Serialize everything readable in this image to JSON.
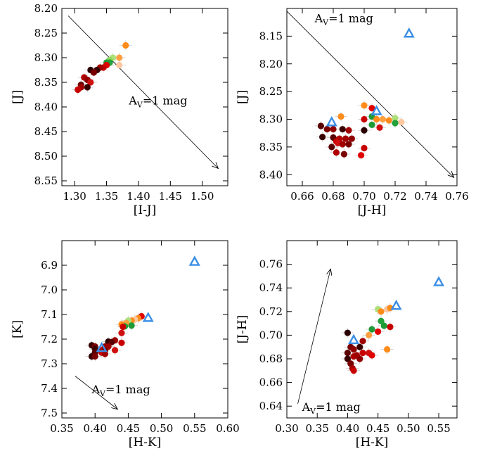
{
  "chart_data": [
    {
      "type": "scatter",
      "xlabel": "[I-J]",
      "ylabel": "[J]",
      "xlim": [
        1.28,
        1.54
      ],
      "ylim": [
        8.56,
        8.2
      ],
      "xticks": [
        "1.30",
        "1.35",
        "1.40",
        "1.45",
        "1.50"
      ],
      "yticks": [
        "8.20",
        "8.25",
        "8.30",
        "8.35",
        "8.40",
        "8.45",
        "8.50",
        "8.55"
      ],
      "annotation": {
        "main": "A",
        "sub": "V",
        "rest": "=1 mag",
        "x": 1.385,
        "y": 8.395
      },
      "reddening_vector": {
        "x0": 1.29,
        "y0": 8.215,
        "x1": 1.525,
        "y1": 8.525
      },
      "points": [
        {
          "x": 1.38,
          "y": 8.275,
          "color": "#ff8c1a"
        },
        {
          "x": 1.37,
          "y": 8.3,
          "color": "#ffa040"
        },
        {
          "x": 1.37,
          "y": 8.315,
          "color": "#ffc8a0"
        },
        {
          "x": 1.36,
          "y": 8.3,
          "color": "#aee07a"
        },
        {
          "x": 1.355,
          "y": 8.305,
          "color": "#8cd85a"
        },
        {
          "x": 1.355,
          "y": 8.31,
          "color": "#22a23a"
        },
        {
          "x": 1.35,
          "y": 8.31,
          "color": "#1e9a36"
        },
        {
          "x": 1.35,
          "y": 8.315,
          "color": "#e00000"
        },
        {
          "x": 1.345,
          "y": 8.32,
          "color": "#c80000"
        },
        {
          "x": 1.34,
          "y": 8.32,
          "color": "#a00000"
        },
        {
          "x": 1.335,
          "y": 8.325,
          "color": "#3a0000"
        },
        {
          "x": 1.325,
          "y": 8.325,
          "color": "#2a0000"
        },
        {
          "x": 1.33,
          "y": 8.33,
          "color": "#7a0000"
        },
        {
          "x": 1.315,
          "y": 8.34,
          "color": "#b00000"
        },
        {
          "x": 1.32,
          "y": 8.345,
          "color": "#900000"
        },
        {
          "x": 1.325,
          "y": 8.35,
          "color": "#d01010"
        },
        {
          "x": 1.31,
          "y": 8.355,
          "color": "#6a0000"
        },
        {
          "x": 1.32,
          "y": 8.36,
          "color": "#380000"
        },
        {
          "x": 1.31,
          "y": 8.36,
          "color": "#a00000"
        },
        {
          "x": 1.305,
          "y": 8.365,
          "color": "#c80000"
        }
      ],
      "triangles": []
    },
    {
      "type": "scatter",
      "xlabel": "[J-H]",
      "ylabel": "[J]",
      "xlim": [
        0.65,
        0.76
      ],
      "ylim": [
        8.42,
        8.1
      ],
      "xticks": [
        "0.66",
        "0.68",
        "0.70",
        "0.72",
        "0.74",
        "0.76"
      ],
      "yticks": [
        "8.15",
        "8.20",
        "8.25",
        "8.30",
        "8.35",
        "8.40"
      ],
      "annotation": {
        "main": "A",
        "sub": "V",
        "rest": "=1 mag",
        "x": 0.668,
        "y": 8.125
      },
      "reddening_vector": {
        "x0": 0.65,
        "y0": 8.105,
        "x1": 0.758,
        "y1": 8.405
      },
      "points": [
        {
          "x": 0.7,
          "y": 8.275,
          "color": "#ff8c1a"
        },
        {
          "x": 0.705,
          "y": 8.28,
          "color": "#e00000"
        },
        {
          "x": 0.685,
          "y": 8.295,
          "color": "#ff8c1a"
        },
        {
          "x": 0.7,
          "y": 8.3,
          "color": "#c80000"
        },
        {
          "x": 0.705,
          "y": 8.295,
          "color": "#1e9a36"
        },
        {
          "x": 0.708,
          "y": 8.3,
          "color": "#ff8c1a"
        },
        {
          "x": 0.712,
          "y": 8.3,
          "color": "#ffa040"
        },
        {
          "x": 0.716,
          "y": 8.302,
          "color": "#ff8c1a"
        },
        {
          "x": 0.72,
          "y": 8.298,
          "color": "#aee07a"
        },
        {
          "x": 0.724,
          "y": 8.305,
          "color": "#ffc8a0"
        },
        {
          "x": 0.72,
          "y": 8.307,
          "color": "#22a23a"
        },
        {
          "x": 0.705,
          "y": 8.31,
          "color": "#1e9a36"
        },
        {
          "x": 0.71,
          "y": 8.315,
          "color": "#d01010"
        },
        {
          "x": 0.7,
          "y": 8.32,
          "color": "#2a0000"
        },
        {
          "x": 0.672,
          "y": 8.312,
          "color": "#5a0000"
        },
        {
          "x": 0.676,
          "y": 8.318,
          "color": "#7a0000"
        },
        {
          "x": 0.68,
          "y": 8.318,
          "color": "#900000"
        },
        {
          "x": 0.686,
          "y": 8.318,
          "color": "#3a0000"
        },
        {
          "x": 0.69,
          "y": 8.32,
          "color": "#a00000"
        },
        {
          "x": 0.673,
          "y": 8.332,
          "color": "#380000"
        },
        {
          "x": 0.68,
          "y": 8.333,
          "color": "#5a0000"
        },
        {
          "x": 0.684,
          "y": 8.335,
          "color": "#b00000"
        },
        {
          "x": 0.688,
          "y": 8.335,
          "color": "#a00000"
        },
        {
          "x": 0.692,
          "y": 8.335,
          "color": "#900000"
        },
        {
          "x": 0.682,
          "y": 8.34,
          "color": "#c80000"
        },
        {
          "x": 0.683,
          "y": 8.343,
          "color": "#d01010"
        },
        {
          "x": 0.686,
          "y": 8.345,
          "color": "#a00000"
        },
        {
          "x": 0.69,
          "y": 8.345,
          "color": "#7a0000"
        },
        {
          "x": 0.679,
          "y": 8.35,
          "color": "#5a0000"
        },
        {
          "x": 0.7,
          "y": 8.352,
          "color": "#c80000"
        },
        {
          "x": 0.682,
          "y": 8.36,
          "color": "#b00000"
        },
        {
          "x": 0.687,
          "y": 8.363,
          "color": "#7a0000"
        },
        {
          "x": 0.698,
          "y": 8.365,
          "color": "#e00000"
        }
      ],
      "triangles": [
        {
          "x": 0.729,
          "y": 8.145
        },
        {
          "x": 0.708,
          "y": 8.285
        },
        {
          "x": 0.679,
          "y": 8.305
        }
      ]
    },
    {
      "type": "scatter",
      "xlabel": "[H-K]",
      "ylabel": "[K]",
      "xlim": [
        0.35,
        0.6
      ],
      "ylim": [
        7.52,
        6.8
      ],
      "xticks": [
        "0.35",
        "0.40",
        "0.45",
        "0.50",
        "0.55",
        "0.60"
      ],
      "yticks": [
        "6.9",
        "7.0",
        "7.1",
        "7.2",
        "7.3",
        "7.4",
        "7.5"
      ],
      "annotation": {
        "main": "A",
        "sub": "V",
        "rest": "=1 mag",
        "x": 0.395,
        "y": 7.42
      },
      "reddening_vector": {
        "x0": 0.37,
        "y0": 7.35,
        "x1": 0.434,
        "y1": 7.485
      },
      "points": [
        {
          "x": 0.47,
          "y": 7.107,
          "color": "#e00000"
        },
        {
          "x": 0.465,
          "y": 7.115,
          "color": "#ff8c1a"
        },
        {
          "x": 0.46,
          "y": 7.12,
          "color": "#ffc8a0"
        },
        {
          "x": 0.455,
          "y": 7.125,
          "color": "#ff8c1a"
        },
        {
          "x": 0.45,
          "y": 7.125,
          "color": "#aee07a"
        },
        {
          "x": 0.447,
          "y": 7.135,
          "color": "#ffa040"
        },
        {
          "x": 0.44,
          "y": 7.14,
          "color": "#ff8c1a"
        },
        {
          "x": 0.455,
          "y": 7.145,
          "color": "#1e9a36"
        },
        {
          "x": 0.445,
          "y": 7.148,
          "color": "#22a23a"
        },
        {
          "x": 0.442,
          "y": 7.15,
          "color": "#c80000"
        },
        {
          "x": 0.44,
          "y": 7.175,
          "color": "#d01010"
        },
        {
          "x": 0.43,
          "y": 7.205,
          "color": "#a00000"
        },
        {
          "x": 0.42,
          "y": 7.21,
          "color": "#2a0000"
        },
        {
          "x": 0.425,
          "y": 7.212,
          "color": "#5a0000"
        },
        {
          "x": 0.44,
          "y": 7.215,
          "color": "#c80000"
        },
        {
          "x": 0.395,
          "y": 7.225,
          "color": "#380000"
        },
        {
          "x": 0.4,
          "y": 7.23,
          "color": "#7a0000"
        },
        {
          "x": 0.415,
          "y": 7.23,
          "color": "#900000"
        },
        {
          "x": 0.42,
          "y": 7.23,
          "color": "#a00000"
        },
        {
          "x": 0.4,
          "y": 7.24,
          "color": "#3a0000"
        },
        {
          "x": 0.41,
          "y": 7.245,
          "color": "#b00000"
        },
        {
          "x": 0.415,
          "y": 7.245,
          "color": "#7a0000"
        },
        {
          "x": 0.43,
          "y": 7.245,
          "color": "#d01010"
        },
        {
          "x": 0.4,
          "y": 7.255,
          "color": "#5a0000"
        },
        {
          "x": 0.41,
          "y": 7.255,
          "color": "#c80000"
        },
        {
          "x": 0.395,
          "y": 7.27,
          "color": "#380000"
        },
        {
          "x": 0.4,
          "y": 7.27,
          "color": "#7a0000"
        },
        {
          "x": 0.415,
          "y": 7.26,
          "color": "#a00000"
        }
      ],
      "triangles": [
        {
          "x": 0.55,
          "y": 6.885
        },
        {
          "x": 0.48,
          "y": 7.113
        },
        {
          "x": 0.41,
          "y": 7.235
        }
      ]
    },
    {
      "type": "scatter",
      "xlabel": "[H-K]",
      "ylabel": "[J-H]",
      "xlim": [
        0.3,
        0.58
      ],
      "ylim": [
        0.63,
        0.78
      ],
      "xticks": [
        "0.30",
        "0.35",
        "0.40",
        "0.45",
        "0.50",
        "0.55"
      ],
      "yticks": [
        "0.64",
        "0.66",
        "0.68",
        "0.70",
        "0.72",
        "0.74",
        "0.76"
      ],
      "annotation": {
        "main": "A",
        "sub": "V",
        "rest": "=1 mag",
        "x": 0.325,
        "y": 0.636
      },
      "reddening_vector": {
        "x0": 0.318,
        "y0": 0.642,
        "x1": 0.372,
        "y1": 0.756
      },
      "points": [
        {
          "x": 0.45,
          "y": 0.722,
          "color": "#aee07a"
        },
        {
          "x": 0.455,
          "y": 0.72,
          "color": "#ff8c1a"
        },
        {
          "x": 0.465,
          "y": 0.722,
          "color": "#ffc8a0"
        },
        {
          "x": 0.47,
          "y": 0.723,
          "color": "#ff8c1a"
        },
        {
          "x": 0.455,
          "y": 0.712,
          "color": "#22a23a"
        },
        {
          "x": 0.46,
          "y": 0.708,
          "color": "#1e9a36"
        },
        {
          "x": 0.47,
          "y": 0.707,
          "color": "#c80000"
        },
        {
          "x": 0.44,
          "y": 0.705,
          "color": "#1e9a36"
        },
        {
          "x": 0.435,
          "y": 0.7,
          "color": "#ffa040"
        },
        {
          "x": 0.45,
          "y": 0.703,
          "color": "#e00000"
        },
        {
          "x": 0.4,
          "y": 0.702,
          "color": "#2a0000"
        },
        {
          "x": 0.425,
          "y": 0.695,
          "color": "#a00000"
        },
        {
          "x": 0.405,
          "y": 0.69,
          "color": "#7a0000"
        },
        {
          "x": 0.41,
          "y": 0.688,
          "color": "#900000"
        },
        {
          "x": 0.42,
          "y": 0.69,
          "color": "#3a0000"
        },
        {
          "x": 0.4,
          "y": 0.685,
          "color": "#5a0000"
        },
        {
          "x": 0.41,
          "y": 0.682,
          "color": "#b00000"
        },
        {
          "x": 0.415,
          "y": 0.683,
          "color": "#a00000"
        },
        {
          "x": 0.425,
          "y": 0.685,
          "color": "#c80000"
        },
        {
          "x": 0.435,
          "y": 0.685,
          "color": "#d01010"
        },
        {
          "x": 0.44,
          "y": 0.683,
          "color": "#e00000"
        },
        {
          "x": 0.4,
          "y": 0.68,
          "color": "#380000"
        },
        {
          "x": 0.405,
          "y": 0.676,
          "color": "#7a0000"
        },
        {
          "x": 0.42,
          "y": 0.68,
          "color": "#900000"
        },
        {
          "x": 0.465,
          "y": 0.688,
          "color": "#ff8c1a"
        },
        {
          "x": 0.408,
          "y": 0.672,
          "color": "#a00000"
        },
        {
          "x": 0.41,
          "y": 0.67,
          "color": "#c80000"
        }
      ],
      "triangles": [
        {
          "x": 0.55,
          "y": 0.745
        },
        {
          "x": 0.48,
          "y": 0.725
        },
        {
          "x": 0.41,
          "y": 0.696
        }
      ]
    }
  ]
}
